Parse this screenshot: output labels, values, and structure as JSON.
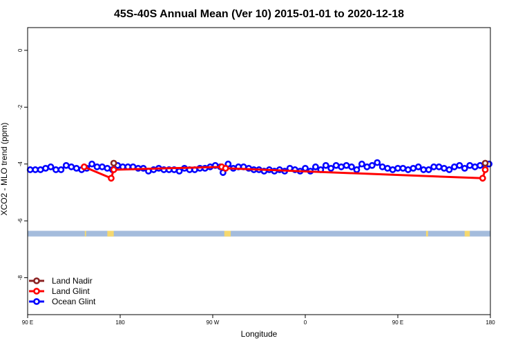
{
  "chart_data": {
    "type": "line",
    "title": "45S-40S Annual Mean (Ver 10)   2015-01-01 to 2020-12-18",
    "xlabel": "Longitude",
    "ylabel": "XCO2 - MLO trend (ppm)",
    "xlim": [
      90,
      450
    ],
    "ylim": [
      -9.3,
      0.8
    ],
    "x_ticks": [
      {
        "value": 90,
        "label": "90 E"
      },
      {
        "value": 162,
        "label": "180"
      },
      {
        "value": 234,
        "label": "90 W"
      },
      {
        "value": 306,
        "label": "0"
      },
      {
        "value": 378,
        "label": "90 E"
      },
      {
        "value": 450,
        "label": "180"
      }
    ],
    "y_ticks": [
      {
        "value": 0,
        "label": "0"
      },
      {
        "value": -2,
        "label": "-2"
      },
      {
        "value": -4,
        "label": "-4"
      },
      {
        "value": -6,
        "label": "-6"
      },
      {
        "value": -8,
        "label": "-8"
      }
    ],
    "land_mask": {
      "y_range": [
        -6.55,
        -6.35
      ],
      "ocean_color": "#a4bcdc",
      "land_color": "#f5d870",
      "land_segments": [
        [
          134.5,
          135.5
        ],
        [
          152,
          157
        ],
        [
          243,
          248
        ],
        [
          400,
          401.5
        ],
        [
          430,
          434
        ]
      ]
    },
    "legend": {
      "position": "bottom-left",
      "entries": [
        "Land Nadir",
        "Land Glint",
        "Ocean Glint"
      ]
    },
    "series": [
      {
        "name": "Land Nadir",
        "color": "#8b2323",
        "x": [
          157,
          446
        ],
        "y": [
          -3.97,
          -3.97
        ]
      },
      {
        "name": "Land Glint",
        "color": "#ff0000",
        "x": [
          134,
          155,
          157,
          241,
          244,
          444,
          446
        ],
        "y": [
          -4.1,
          -4.5,
          -4.2,
          -4.1,
          -4.15,
          -4.5,
          -4.2
        ]
      },
      {
        "name": "Ocean Glint",
        "color": "#0000ff",
        "x": [
          92,
          96,
          100,
          104,
          108,
          112,
          116,
          120,
          124,
          128,
          132,
          136,
          140,
          144,
          148,
          152,
          156,
          160,
          164,
          168,
          172,
          176,
          180,
          184,
          188,
          192,
          196,
          200,
          204,
          208,
          212,
          216,
          220,
          224,
          228,
          232,
          236,
          240,
          242,
          246,
          250,
          254,
          258,
          262,
          266,
          270,
          274,
          278,
          282,
          286,
          290,
          294,
          298,
          302,
          306,
          310,
          314,
          318,
          322,
          326,
          330,
          334,
          338,
          342,
          346,
          350,
          354,
          358,
          362,
          366,
          370,
          374,
          378,
          382,
          386,
          390,
          394,
          398,
          402,
          406,
          410,
          414,
          418,
          422,
          426,
          430,
          434,
          438,
          442,
          446,
          449
        ],
        "y": [
          -4.2,
          -4.2,
          -4.2,
          -4.15,
          -4.1,
          -4.2,
          -4.2,
          -4.05,
          -4.1,
          -4.15,
          -4.2,
          -4.15,
          -4.0,
          -4.1,
          -4.1,
          -4.15,
          -4.2,
          -4.05,
          -4.1,
          -4.1,
          -4.1,
          -4.15,
          -4.15,
          -4.25,
          -4.2,
          -4.15,
          -4.2,
          -4.2,
          -4.2,
          -4.25,
          -4.15,
          -4.2,
          -4.2,
          -4.15,
          -4.15,
          -4.1,
          -4.05,
          -4.1,
          -4.3,
          -4.0,
          -4.15,
          -4.1,
          -4.1,
          -4.15,
          -4.2,
          -4.2,
          -4.25,
          -4.2,
          -4.25,
          -4.2,
          -4.25,
          -4.15,
          -4.2,
          -4.25,
          -4.15,
          -4.25,
          -4.1,
          -4.2,
          -4.05,
          -4.15,
          -4.05,
          -4.1,
          -4.05,
          -4.1,
          -4.2,
          -4.0,
          -4.1,
          -4.05,
          -3.95,
          -4.1,
          -4.15,
          -4.2,
          -4.15,
          -4.15,
          -4.2,
          -4.15,
          -4.1,
          -4.2,
          -4.2,
          -4.1,
          -4.1,
          -4.15,
          -4.2,
          -4.1,
          -4.05,
          -4.15,
          -4.05,
          -4.1,
          -4.05,
          -4.05,
          -4.0
        ]
      }
    ]
  }
}
